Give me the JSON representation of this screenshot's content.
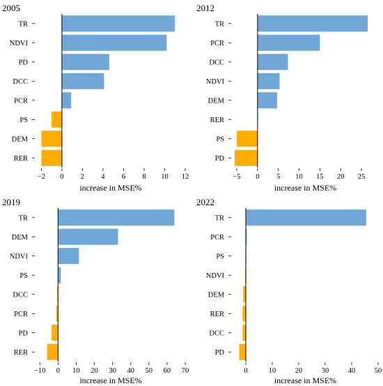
{
  "colors": {
    "positive": "#6fa8d6",
    "negative": "#ffad00",
    "axis": "#000000"
  },
  "chart_data": [
    {
      "type": "bar",
      "orientation": "horizontal",
      "title": "2005",
      "xlabel": "increase in MSE%",
      "categories": [
        "TR",
        "NDVI",
        "PD",
        "DCC",
        "PCR",
        "PS",
        "DEM",
        "RER"
      ],
      "values": [
        11.0,
        10.2,
        4.6,
        4.1,
        0.9,
        -1.0,
        -2.0,
        -2.0
      ],
      "xlim": [
        -2.5,
        12
      ],
      "xticks": [
        -2,
        0,
        2,
        4,
        6,
        8,
        10,
        12
      ]
    },
    {
      "type": "bar",
      "orientation": "horizontal",
      "title": "2012",
      "xlabel": "increase in MSE%",
      "categories": [
        "TR",
        "PCR",
        "DCC",
        "NDVI",
        "DEM",
        "RER",
        "PS",
        "PD"
      ],
      "values": [
        26.5,
        15.0,
        7.3,
        5.3,
        4.7,
        0.0,
        -5.0,
        -5.5
      ],
      "xlim": [
        -6.0,
        29
      ],
      "xticks": [
        -5,
        0,
        5,
        10,
        15,
        20,
        25
      ]
    },
    {
      "type": "bar",
      "orientation": "horizontal",
      "title": "2019",
      "xlabel": "increase in MSE%",
      "categories": [
        "TR",
        "DEM",
        "NDVI",
        "PS",
        "DCC",
        "PCR",
        "PD",
        "RER"
      ],
      "values": [
        64.0,
        33.0,
        11.5,
        1.5,
        -0.5,
        -1.0,
        -3.5,
        -6.0
      ],
      "xlim": [
        -12,
        70
      ],
      "xticks": [
        -10,
        0,
        10,
        20,
        30,
        40,
        50,
        60,
        70
      ]
    },
    {
      "type": "bar",
      "orientation": "horizontal",
      "title": "2022",
      "xlabel": "increase in MSE%",
      "categories": [
        "TR",
        "PCR",
        "PS",
        "NDVI",
        "DEM",
        "RER",
        "DCC",
        "PD"
      ],
      "values": [
        45.5,
        0.4,
        0.2,
        -0.3,
        -1.0,
        -1.2,
        -1.2,
        -2.5
      ],
      "xlim": [
        -5,
        50
      ],
      "xticks": [
        0,
        10,
        20,
        30,
        40,
        50
      ]
    }
  ]
}
